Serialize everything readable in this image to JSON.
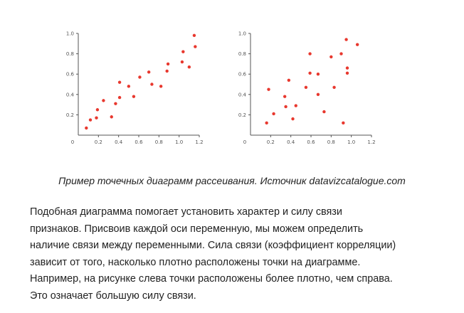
{
  "chart_data": [
    {
      "type": "scatter",
      "title": "",
      "xlabel": "",
      "ylabel": "",
      "xlim": [
        0,
        1.2
      ],
      "ylim": [
        0,
        1.0
      ],
      "x_ticks": [
        "0",
        "0.2",
        "0.4",
        "0.6",
        "0.8",
        "1.0",
        "1.2"
      ],
      "y_ticks": [
        "0.2",
        "0.4",
        "0.6",
        "0.8",
        "1.0"
      ],
      "color": "#e8382e",
      "points": [
        {
          "x": 0.08,
          "y": 0.07
        },
        {
          "x": 0.12,
          "y": 0.15
        },
        {
          "x": 0.18,
          "y": 0.17
        },
        {
          "x": 0.19,
          "y": 0.25
        },
        {
          "x": 0.25,
          "y": 0.34
        },
        {
          "x": 0.33,
          "y": 0.18
        },
        {
          "x": 0.37,
          "y": 0.31
        },
        {
          "x": 0.41,
          "y": 0.37
        },
        {
          "x": 0.41,
          "y": 0.52
        },
        {
          "x": 0.5,
          "y": 0.48
        },
        {
          "x": 0.55,
          "y": 0.38
        },
        {
          "x": 0.61,
          "y": 0.57
        },
        {
          "x": 0.7,
          "y": 0.62
        },
        {
          "x": 0.73,
          "y": 0.5
        },
        {
          "x": 0.82,
          "y": 0.48
        },
        {
          "x": 0.88,
          "y": 0.63
        },
        {
          "x": 0.89,
          "y": 0.7
        },
        {
          "x": 1.03,
          "y": 0.72
        },
        {
          "x": 1.04,
          "y": 0.82
        },
        {
          "x": 1.1,
          "y": 0.67
        },
        {
          "x": 1.15,
          "y": 0.98
        },
        {
          "x": 1.16,
          "y": 0.87
        }
      ]
    },
    {
      "type": "scatter",
      "title": "",
      "xlabel": "",
      "ylabel": "",
      "xlim": [
        0,
        1.2
      ],
      "ylim": [
        0,
        1.0
      ],
      "x_ticks": [
        "0",
        "0.2",
        "0.4",
        "0.6",
        "0.8",
        "1.0",
        "1.2"
      ],
      "y_ticks": [
        "0.2",
        "0.4",
        "0.6",
        "0.8",
        "1.0"
      ],
      "color": "#e8382e",
      "points": [
        {
          "x": 0.16,
          "y": 0.12
        },
        {
          "x": 0.18,
          "y": 0.45
        },
        {
          "x": 0.23,
          "y": 0.21
        },
        {
          "x": 0.34,
          "y": 0.38
        },
        {
          "x": 0.35,
          "y": 0.28
        },
        {
          "x": 0.38,
          "y": 0.54
        },
        {
          "x": 0.42,
          "y": 0.16
        },
        {
          "x": 0.45,
          "y": 0.29
        },
        {
          "x": 0.55,
          "y": 0.47
        },
        {
          "x": 0.59,
          "y": 0.61
        },
        {
          "x": 0.59,
          "y": 0.8
        },
        {
          "x": 0.67,
          "y": 0.4
        },
        {
          "x": 0.67,
          "y": 0.6
        },
        {
          "x": 0.73,
          "y": 0.23
        },
        {
          "x": 0.8,
          "y": 0.77
        },
        {
          "x": 0.83,
          "y": 0.47
        },
        {
          "x": 0.9,
          "y": 0.8
        },
        {
          "x": 0.92,
          "y": 0.12
        },
        {
          "x": 0.95,
          "y": 0.94
        },
        {
          "x": 0.96,
          "y": 0.61
        },
        {
          "x": 0.96,
          "y": 0.66
        },
        {
          "x": 1.06,
          "y": 0.89
        }
      ]
    }
  ],
  "caption": "Пример точечных диаграмм рассеивания. Источник datavizcatalogue.com",
  "paragraph_lines": [
    "Подобная диаграмма помогает установить характер и силу связи",
    "признаков. Присвоив каждой оси переменную, мы можем определить",
    "наличие связи между переменными. Сила связи (коэффициент корреляции)",
    "зависит от того, насколько плотно расположены точки на диаграмме.",
    "Например, на рисунке слева точки расположены более плотно, чем справа.",
    "Это означает большую силу связи."
  ]
}
